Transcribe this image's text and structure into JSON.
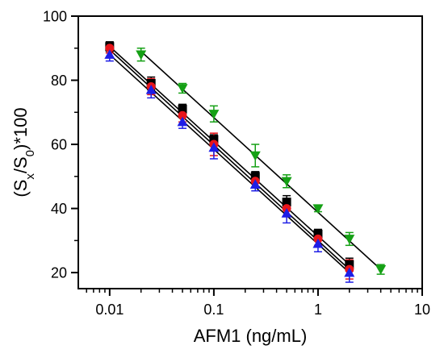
{
  "chart_data": {
    "type": "scatter",
    "title": "",
    "xlabel": "AFM1 (ng/mL)",
    "ylabel": {
      "prefix": "(S",
      "sub_x": "x",
      "mid": "/S",
      "sub_0": "0",
      "suffix": ")*100"
    },
    "x_scale": "log",
    "xlim": [
      0.005,
      10
    ],
    "ylim": [
      15,
      100
    ],
    "x_ticks": [
      {
        "value": 0.01,
        "label": "0.01"
      },
      {
        "value": 0.1,
        "label": "0.1"
      },
      {
        "value": 1,
        "label": "1"
      },
      {
        "value": 10,
        "label": "10"
      }
    ],
    "y_ticks": [
      {
        "value": 20,
        "label": "20"
      },
      {
        "value": 40,
        "label": "40"
      },
      {
        "value": 60,
        "label": "60"
      },
      {
        "value": 80,
        "label": "80"
      },
      {
        "value": 100,
        "label": "100"
      }
    ],
    "series": [
      {
        "marker": "square",
        "color": "#000000",
        "x": [
          0.01,
          0.025,
          0.05,
          0.1,
          0.25,
          0.5,
          1,
          2
        ],
        "y": [
          90.5,
          79,
          71,
          61.5,
          50,
          42,
          32,
          22.5
        ],
        "err": [
          1.5,
          2,
          1.5,
          1.5,
          1.5,
          2,
          1.5,
          2
        ],
        "fit": [
          [
            0.01,
            90.5
          ],
          [
            2,
            22.5
          ]
        ]
      },
      {
        "marker": "circle",
        "color": "#e8151b",
        "x": [
          0.01,
          0.025,
          0.05,
          0.1,
          0.25,
          0.5,
          1,
          2
        ],
        "y": [
          90,
          78,
          69,
          60,
          48.5,
          40,
          30.5,
          21
        ],
        "err": [
          1.5,
          2.5,
          2,
          3.5,
          2,
          2.5,
          2,
          3
        ],
        "fit": [
          [
            0.01,
            89.5
          ],
          [
            2,
            21
          ]
        ]
      },
      {
        "marker": "triangle-up",
        "color": "#1e1ee6",
        "x": [
          0.01,
          0.025,
          0.05,
          0.1,
          0.25,
          0.5,
          1,
          2
        ],
        "y": [
          88,
          77,
          67,
          59,
          47.5,
          38.5,
          29,
          20
        ],
        "err": [
          2,
          2.5,
          2,
          3.5,
          2,
          3,
          2.5,
          3
        ],
        "fit": [
          [
            0.01,
            88
          ],
          [
            2,
            20
          ]
        ]
      },
      {
        "marker": "triangle-down",
        "color": "#15a015",
        "x": [
          0.02,
          0.05,
          0.1,
          0.25,
          0.5,
          1,
          2,
          4
        ],
        "y": [
          88,
          77.5,
          69.5,
          56.5,
          48.5,
          40,
          30.5,
          21
        ],
        "err": [
          2,
          1.5,
          2.5,
          3.5,
          2,
          1,
          2,
          1.5
        ],
        "fit": [
          [
            0.02,
            89
          ],
          [
            4,
            21
          ]
        ]
      }
    ]
  }
}
